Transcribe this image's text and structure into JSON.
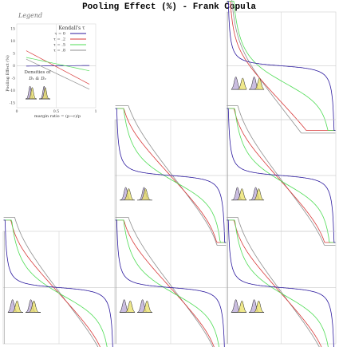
{
  "title": "Pooling Effect (%) - Frank Copula",
  "colors": {
    "tau_0": "#2c1a9e",
    "tau_2": "#d83a3a",
    "tau_5": "#4fdc55",
    "tau_8": "#8f8f8f",
    "density_1": "#b8a7d6",
    "density_2": "#e9e064",
    "grid": "#d6d6d6"
  },
  "legend": {
    "heading": "Legend",
    "kendall_title": "Kendall's τ",
    "entries": [
      "τ = 0",
      "τ = .2",
      "τ = .5",
      "τ = .8"
    ],
    "densities_label_1": "Densities of",
    "densities_label_2": "D₁ & D₂",
    "ylabel": "Pooling Effect (%)",
    "xlabel": "margin ratio = (p−c)/p",
    "y_ticks": [
      "15",
      "10",
      "5",
      "0",
      "-5",
      "-10",
      "-15"
    ],
    "x_ticks": [
      "0",
      "0.5",
      "1"
    ]
  },
  "chart_data": {
    "type": "line",
    "title": "Pooling Effect (%) - Frank Copula",
    "xlabel": "margin ratio = (p−c)/p",
    "ylabel": "Pooling Effect (%)",
    "xlim": [
      0,
      1
    ],
    "ylim": [
      -15,
      15
    ],
    "grid": true,
    "legend_placement": "top-left panel",
    "x": [
      0.02,
      0.05,
      0.1,
      0.2,
      0.3,
      0.4,
      0.5,
      0.6,
      0.7,
      0.8,
      0.9,
      0.95,
      0.98
    ],
    "legend_series": [
      {
        "name": "τ = 0",
        "values": [
          15,
          8,
          4,
          1.5,
          0.8,
          0.3,
          0,
          -0.3,
          -0.8,
          -1.5,
          -4,
          -8,
          -15
        ]
      },
      {
        "name": "τ = .2",
        "values": [
          15,
          14,
          12,
          9,
          7,
          4,
          0,
          -4,
          -7,
          -9,
          -12,
          -14,
          -15
        ]
      },
      {
        "name": "τ = .5",
        "values": [
          15,
          12,
          9,
          5,
          3,
          1.5,
          0,
          -1.5,
          -3,
          -5,
          -9,
          -12,
          -15
        ]
      },
      {
        "name": "τ = .8",
        "values": [
          15,
          15,
          15,
          12,
          8,
          4,
          0,
          -4,
          -8,
          -12,
          -15,
          -15,
          -15
        ]
      }
    ],
    "panels": [
      {
        "row": 1,
        "col": 3,
        "density_peaks": [
          0.3,
          0.5,
          0.75
        ],
        "mid": 0.15,
        "scale": [
          1.0,
          1.0,
          1.0,
          1.0
        ]
      },
      {
        "row": 2,
        "col": 2,
        "density_peaks": [
          0.4,
          0.5,
          0.6
        ],
        "mid": 0.5,
        "scale": [
          1.0,
          1.0,
          1.0,
          1.0
        ]
      },
      {
        "row": 2,
        "col": 3,
        "density_peaks": [
          0.4,
          0.5,
          0.7
        ],
        "mid": 0.45,
        "scale": [
          1.0,
          1.0,
          1.0,
          1.0
        ]
      },
      {
        "row": 3,
        "col": 1,
        "density_peaks": [
          0.3,
          0.5,
          0.6
        ],
        "mid": 0.45,
        "scale": [
          1.0,
          1.0,
          1.0,
          1.0
        ]
      },
      {
        "row": 3,
        "col": 2,
        "density_peaks": [
          0.3,
          0.5,
          0.7
        ],
        "mid": 0.5,
        "scale": [
          1.0,
          1.0,
          1.0,
          1.0
        ]
      },
      {
        "row": 3,
        "col": 3,
        "density_peaks": [
          0.3,
          0.5,
          0.7
        ],
        "mid": 0.45,
        "scale": [
          1.0,
          1.0,
          1.0,
          1.0
        ]
      }
    ]
  }
}
